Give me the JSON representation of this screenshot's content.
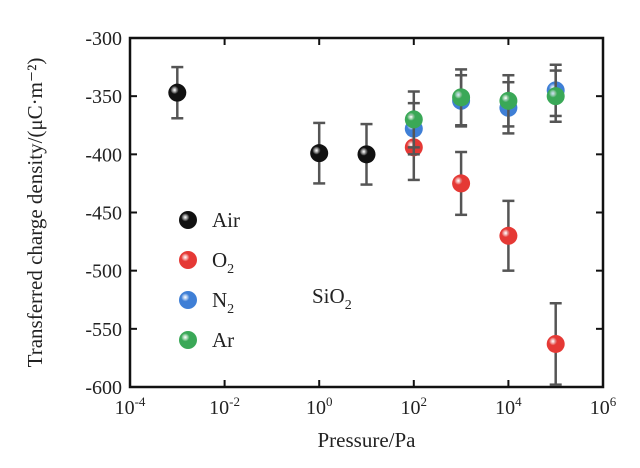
{
  "chart_data": {
    "type": "scatter",
    "title": "",
    "xlabel": "Pressure/Pa",
    "ylabel": "Transferred charge density/(μC·m⁻²)",
    "x_scale": "log",
    "xlim": [
      0.0001,
      1000000
    ],
    "ylim": [
      -600,
      -300
    ],
    "x_ticks": [
      {
        "value": 0.0001,
        "base": "10",
        "exp": "-4"
      },
      {
        "value": 0.01,
        "base": "10",
        "exp": "-2"
      },
      {
        "value": 1,
        "base": "10",
        "exp": "0"
      },
      {
        "value": 100,
        "base": "10",
        "exp": "2"
      },
      {
        "value": 10000,
        "base": "10",
        "exp": "4"
      },
      {
        "value": 1000000,
        "base": "10",
        "exp": "6"
      }
    ],
    "y_ticks": [
      -300,
      -350,
      -400,
      -450,
      -500,
      -550,
      -600
    ],
    "annotation": {
      "text": "SiO",
      "sub": "2"
    },
    "legend_position": "left",
    "grid": false,
    "series": [
      {
        "name": "Air",
        "name_sub": "",
        "color": "#111111",
        "points": [
          {
            "x": 0.001,
            "y": -347,
            "err": 22
          },
          {
            "x": 1,
            "y": -399,
            "err": 26
          },
          {
            "x": 10,
            "y": -400,
            "err": 26
          }
        ]
      },
      {
        "name": "O",
        "name_sub": "2",
        "color": "#e53935",
        "points": [
          {
            "x": 100,
            "y": -394,
            "err": 28
          },
          {
            "x": 1000,
            "y": -425,
            "err": 27
          },
          {
            "x": 10000,
            "y": -470,
            "err": 30
          },
          {
            "x": 100000,
            "y": -563,
            "err": 35
          }
        ]
      },
      {
        "name": "N",
        "name_sub": "2",
        "color": "#3f7fd6",
        "points": [
          {
            "x": 100,
            "y": -378,
            "err": 22
          },
          {
            "x": 1000,
            "y": -354,
            "err": 22
          },
          {
            "x": 10000,
            "y": -360,
            "err": 22
          },
          {
            "x": 100000,
            "y": -345,
            "err": 22
          }
        ]
      },
      {
        "name": "Ar",
        "name_sub": "",
        "color": "#3aa857",
        "points": [
          {
            "x": 100,
            "y": -370,
            "err": 24
          },
          {
            "x": 1000,
            "y": -351,
            "err": 24
          },
          {
            "x": 10000,
            "y": -354,
            "err": 22
          },
          {
            "x": 100000,
            "y": -350,
            "err": 22
          }
        ]
      }
    ]
  }
}
